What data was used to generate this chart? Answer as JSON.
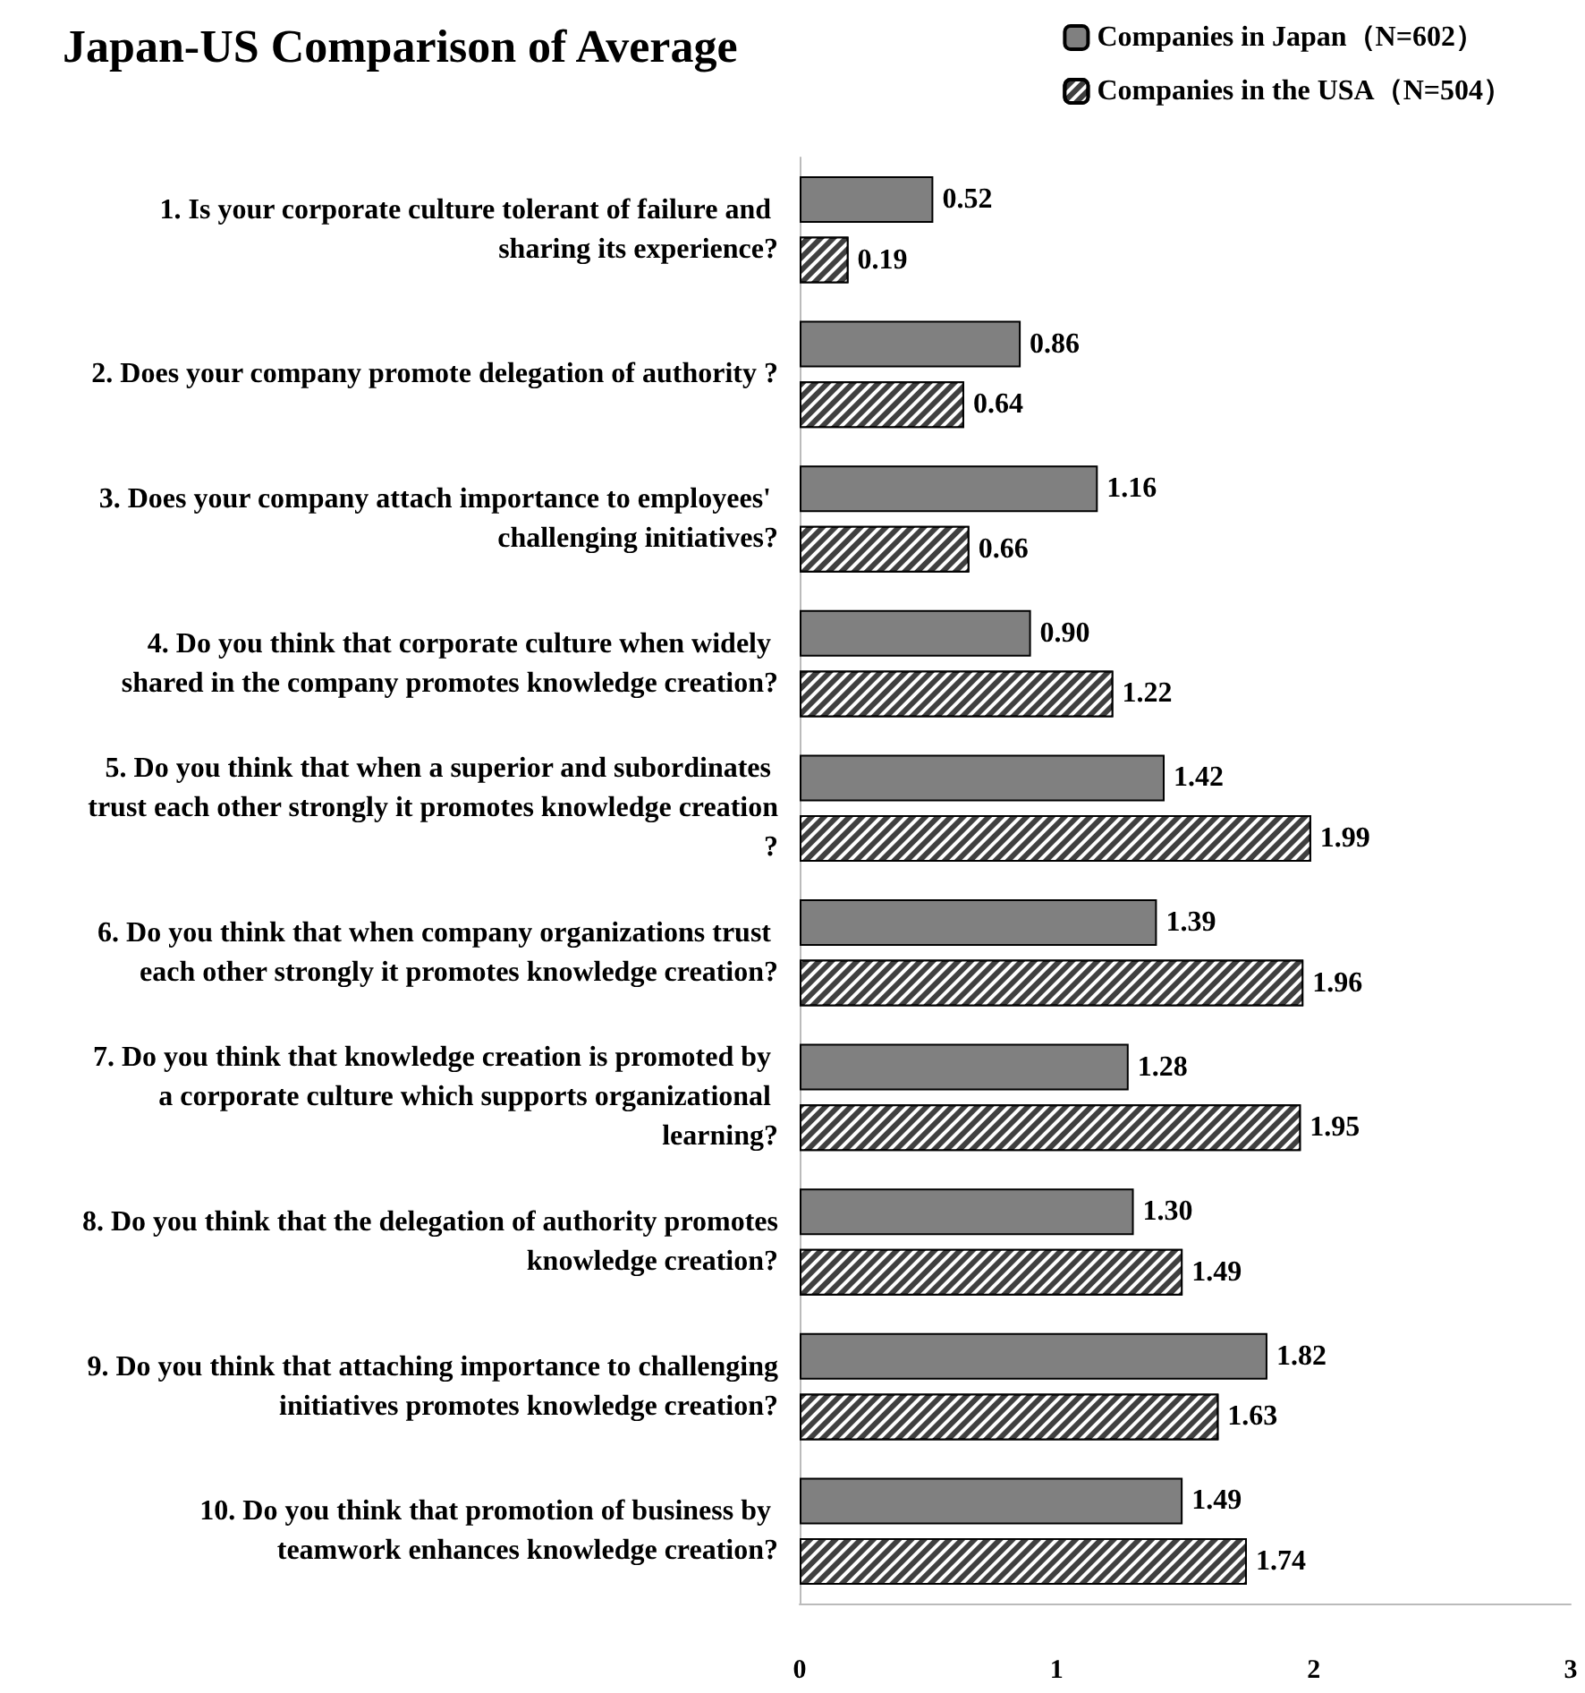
{
  "chart_data": {
    "type": "bar",
    "orientation": "horizontal",
    "title": "Japan-US Comparison of Average",
    "categories": [
      "1. Is your corporate culture tolerant of failure and sharing its experience?",
      "2. Does your company promote delegation of authority ?",
      "3. Does your company attach importance to employees' challenging initiatives?",
      "4. Do you think that corporate culture when widely shared in the company promotes knowledge creation?",
      "5. Do you think that when a superior and subordinates trust each other strongly it promotes knowledge creation?",
      "6. Do you think that when company organizations trust each other strongly it promotes knowledge creation?",
      "7. Do you think that knowledge creation is promoted by a corporate culture which supports organizational learning?",
      "8. Do you think that the delegation of authority promotes knowledge creation?",
      "9. Do you think that attaching importance to challenging initiatives promotes knowledge creation?",
      "10. Do you think that promotion of business by teamwork enhances knowledge creation?"
    ],
    "series": [
      {
        "name": "Companies in Japan（N=602）",
        "color": "#808080",
        "values": [
          0.52,
          0.86,
          1.16,
          0.9,
          1.42,
          1.39,
          1.28,
          1.3,
          1.82,
          1.49
        ],
        "value_labels": [
          "0.52",
          "0.86",
          "1.16",
          "0.90",
          "1.42",
          "1.39",
          "1.28",
          "1.30",
          "1.82",
          "1.49"
        ]
      },
      {
        "name": "Companies in the USA（N=504）",
        "color": "#404040",
        "values": [
          0.19,
          0.64,
          0.66,
          1.22,
          1.99,
          1.96,
          1.95,
          1.49,
          1.63,
          1.74
        ],
        "value_labels": [
          "0.19",
          "0.64",
          "0.66",
          "1.22",
          "1.99",
          "1.96",
          "1.95",
          "1.49",
          "1.63",
          "1.74"
        ]
      }
    ],
    "xlim": [
      0,
      3
    ],
    "xticks": [
      0,
      1,
      2,
      3
    ],
    "legend": "top right",
    "grid": false
  }
}
